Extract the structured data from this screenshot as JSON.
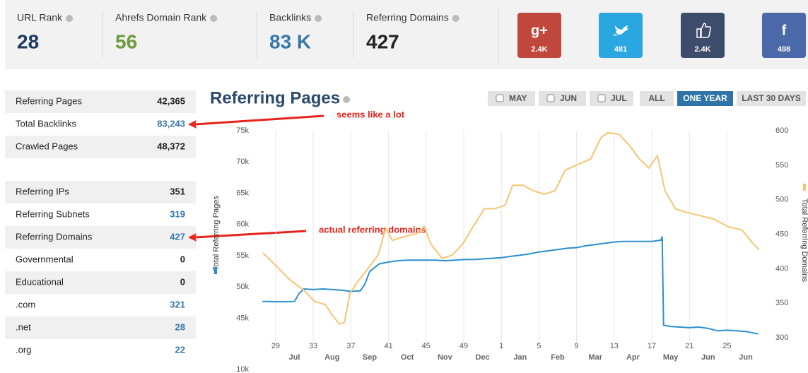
{
  "stats": [
    {
      "label": "URL Rank",
      "value": "28",
      "color": "#1d3a5c"
    },
    {
      "label": "Ahrefs Domain Rank",
      "value": "56",
      "color": "#6a9a3a"
    },
    {
      "label": "Backlinks",
      "value": "83 K",
      "color": "#3a78a8"
    },
    {
      "label": "Referring Domains",
      "value": "427",
      "color": "#222222"
    }
  ],
  "social": [
    {
      "icon": "g+",
      "count": "2.4K",
      "color": "#c0473b"
    },
    {
      "count": "481",
      "color": "#2aa7e0"
    },
    {
      "count": "2.4K",
      "color": "#3e4c6b"
    },
    {
      "icon": "f",
      "count": "498",
      "color": "#4b68a8"
    }
  ],
  "table": {
    "rows": [
      {
        "label": "Referring Pages",
        "value": "42,365",
        "link": false
      },
      {
        "label": "Total Backlinks",
        "value": "83,243",
        "link": true
      },
      {
        "label": "Crawled Pages",
        "value": "48,372",
        "link": false
      },
      {
        "label": "Referring IPs",
        "value": "351",
        "link": false
      },
      {
        "label": "Referring Subnets",
        "value": "319",
        "link": true
      },
      {
        "label": "Referring Domains",
        "value": "427",
        "link": true
      },
      {
        "label": "Governmental",
        "value": "0",
        "link": false
      },
      {
        "label": "Educational",
        "value": "0",
        "link": false
      },
      {
        "label": ".com",
        "value": "321",
        "link": true
      },
      {
        "label": ".net",
        "value": "28",
        "link": true
      },
      {
        "label": ".org",
        "value": "22",
        "link": true
      }
    ]
  },
  "annotations": [
    {
      "text": "seems like a lot",
      "row": 1
    },
    {
      "text": "actual referring domains",
      "row": 5
    }
  ],
  "controls": {
    "checkboxes": [
      "MAY",
      "JUN",
      "JUL"
    ],
    "buttons": [
      "ALL",
      "ONE YEAR",
      "LAST 30 DAYS"
    ],
    "active_button": 1
  },
  "below_chart_label": "10k",
  "chart_data": {
    "type": "line",
    "title": "Referring Pages",
    "grid": "x",
    "xlim": [
      -1.5,
      51.5
    ],
    "xticks": [
      {
        "value": 0,
        "label": "29"
      },
      {
        "value": 4,
        "label": "33"
      },
      {
        "value": 8,
        "label": "37"
      },
      {
        "value": 12,
        "label": "41"
      },
      {
        "value": 16,
        "label": "45"
      },
      {
        "value": 20,
        "label": "49"
      },
      {
        "value": 24,
        "label": "1"
      },
      {
        "value": 28,
        "label": "5"
      },
      {
        "value": 32,
        "label": "9"
      },
      {
        "value": 36,
        "label": "13"
      },
      {
        "value": 40,
        "label": "17"
      },
      {
        "value": 44,
        "label": "21"
      },
      {
        "value": 48,
        "label": "25"
      }
    ],
    "month_ticks": [
      {
        "value": 2,
        "label": "Jul"
      },
      {
        "value": 6,
        "label": "Aug"
      },
      {
        "value": 10,
        "label": "Sep"
      },
      {
        "value": 14,
        "label": "Oct"
      },
      {
        "value": 18,
        "label": "Nov"
      },
      {
        "value": 22,
        "label": "Dec"
      },
      {
        "value": 26,
        "label": "Jan"
      },
      {
        "value": 30,
        "label": "Feb"
      },
      {
        "value": 34,
        "label": "Mar"
      },
      {
        "value": 38,
        "label": "Apr"
      },
      {
        "value": 42,
        "label": "May"
      },
      {
        "value": 46,
        "label": "Jun"
      },
      {
        "value": 50,
        "label": "Jun"
      }
    ],
    "ylim": [
      41000,
      75000
    ],
    "yticks": [
      {
        "value": 45000,
        "label": "45k"
      },
      {
        "value": 50000,
        "label": "50k"
      },
      {
        "value": 55000,
        "label": "55k"
      },
      {
        "value": 60000,
        "label": "60k"
      },
      {
        "value": 65000,
        "label": "65k"
      },
      {
        "value": 70000,
        "label": "70k"
      },
      {
        "value": 75000,
        "label": "75k"
      }
    ],
    "y2lim": [
      292,
      600
    ],
    "y2ticks": [
      300,
      350,
      400,
      450,
      500,
      550,
      600
    ],
    "series": [
      {
        "name": "Total Referring Pages",
        "color": "#2b8fd1",
        "axis": "y",
        "x": [
          -1.4,
          -1,
          0,
          1,
          2,
          2.5,
          3,
          4,
          5,
          6,
          7,
          8,
          9,
          9.5,
          10,
          11,
          12,
          13,
          14,
          15,
          16,
          17,
          18,
          19,
          20,
          21,
          22,
          23,
          24,
          25,
          26,
          27,
          28,
          29,
          30,
          31,
          32,
          33,
          34,
          35,
          36,
          37,
          38,
          39,
          40,
          41,
          41.1,
          41.25,
          42,
          43,
          44,
          45,
          46,
          47,
          48,
          49,
          50,
          51.3
        ],
        "values": [
          47700,
          47700,
          47650,
          47650,
          47700,
          49000,
          49700,
          49600,
          49700,
          49600,
          49500,
          49300,
          49400,
          50500,
          52500,
          53700,
          54000,
          54200,
          54300,
          54300,
          54300,
          54300,
          54200,
          54300,
          54400,
          54400,
          54500,
          54600,
          54700,
          54900,
          55100,
          55300,
          55600,
          55800,
          56000,
          56200,
          56300,
          56600,
          56800,
          57000,
          57200,
          57300,
          57300,
          57300,
          57300,
          57500,
          58100,
          43900,
          43700,
          43600,
          43500,
          43600,
          43400,
          43000,
          43100,
          43000,
          42900,
          42500
        ]
      },
      {
        "name": "Total Referring Domains",
        "color": "#f8c471",
        "axis": "y2",
        "x": [
          -1.35,
          0,
          1.5,
          3,
          4.1,
          5.3,
          6,
          6.8,
          7.3,
          7.9,
          8.6,
          9.8,
          10.9,
          11.7,
          12.4,
          13.5,
          15,
          15.8,
          16.5,
          17.7,
          18.8,
          19.9,
          21,
          22.2,
          23.3,
          24.4,
          25.2,
          26.3,
          27.4,
          28.6,
          29.7,
          30.8,
          32.3,
          33.5,
          34.6,
          35.3,
          36.5,
          37.6,
          38.7,
          39.7,
          40.6,
          41.4,
          42.5,
          43.6,
          45.1,
          46.6,
          48.1,
          49.6,
          50.8,
          51.4
        ],
        "values": [
          423,
          405,
          384,
          369,
          353,
          348,
          333,
          320,
          322,
          364,
          379,
          400,
          420,
          459,
          441,
          446,
          451,
          461,
          436,
          415,
          420,
          436,
          461,
          487,
          487,
          492,
          521,
          521,
          513,
          508,
          513,
          543,
          552,
          559,
          590,
          597,
          595,
          579,
          559,
          546,
          564,
          513,
          487,
          482,
          477,
          472,
          461,
          456,
          436,
          428
        ]
      }
    ]
  }
}
